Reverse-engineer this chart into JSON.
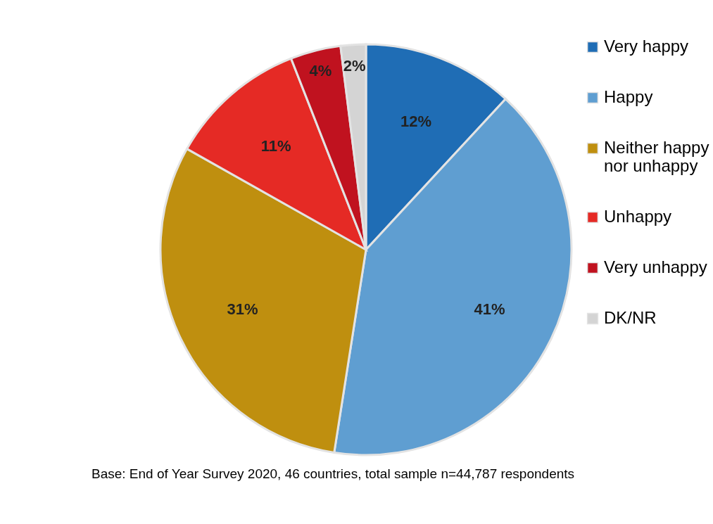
{
  "chart_data": {
    "type": "pie",
    "categories": [
      "Very happy",
      "Happy",
      "Neither happy nor unhappy",
      "Unhappy",
      "Very unhappy",
      "DK/NR"
    ],
    "values": [
      12,
      41,
      31,
      11,
      4,
      2
    ],
    "value_labels": [
      "12%",
      "41%",
      "31%",
      "11%",
      "4%",
      "2%"
    ],
    "colors": [
      "#1f6db5",
      "#5f9ed1",
      "#bf8f0f",
      "#e52a25",
      "#c0121f",
      "#d4d4d4"
    ],
    "legend": "right",
    "annotations": [
      "Base: End of Year Survey 2020, 46 countries,  total sample n=44,787 respondents"
    ]
  }
}
